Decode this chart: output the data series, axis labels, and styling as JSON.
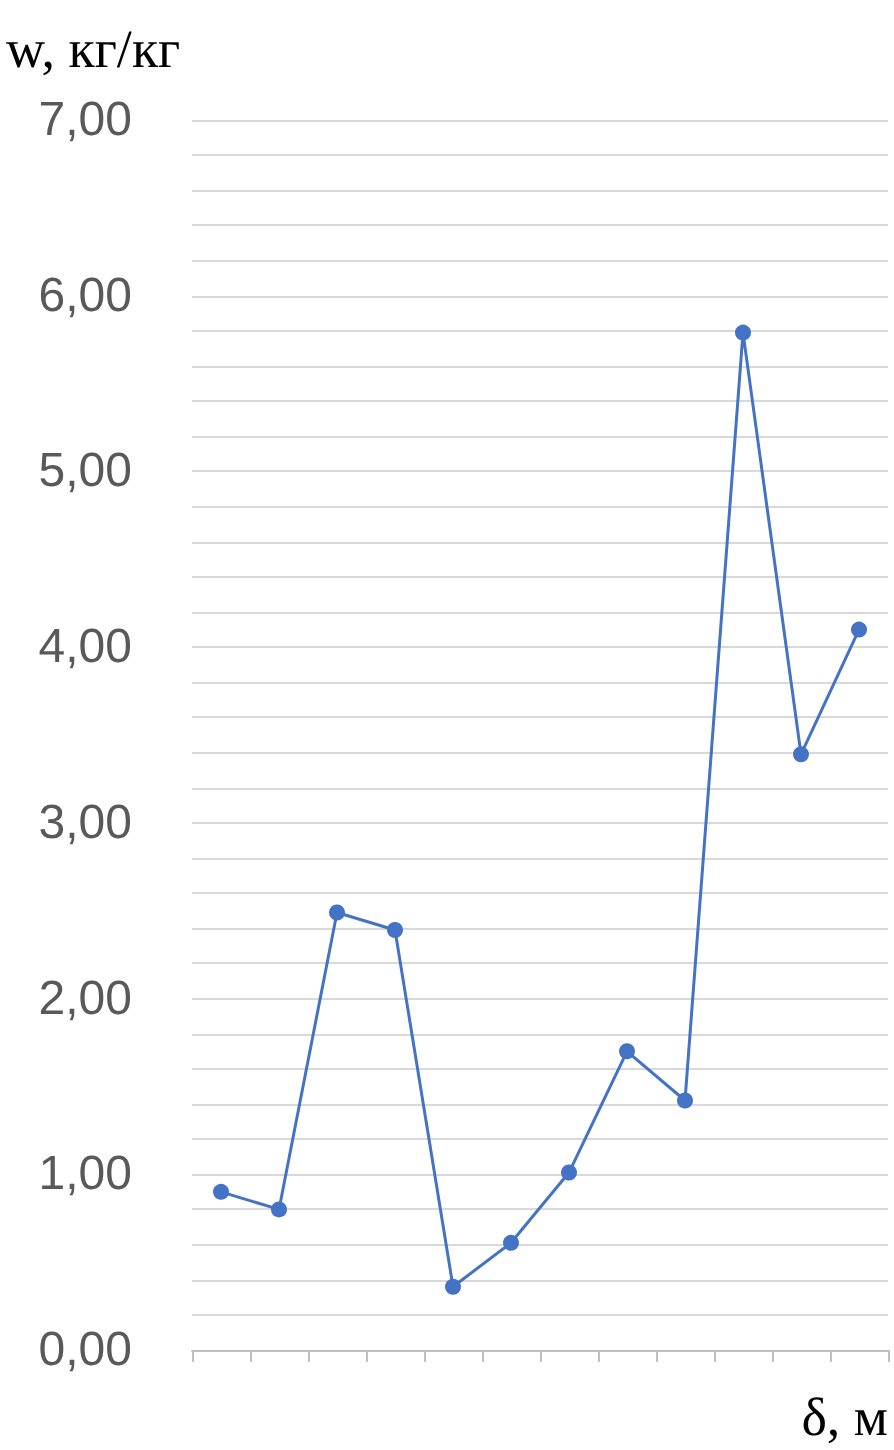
{
  "chart_data": {
    "type": "line",
    "xlabel": "δ, м",
    "ylabel": "w, кг/кг",
    "categories": [
      null,
      null,
      null,
      null,
      null,
      null,
      null,
      null,
      null,
      null,
      null,
      null
    ],
    "series": [
      {
        "color": "#4472c4",
        "values": [
          0.9,
          0.8,
          2.49,
          2.39,
          0.36,
          0.61,
          1.01,
          1.7,
          1.42,
          5.79,
          3.39,
          4.1
        ]
      }
    ],
    "ylim": [
      0,
      7
    ],
    "yticks": [
      {
        "value": 0,
        "label": "0,00"
      },
      {
        "value": 0.2,
        "label": null
      },
      {
        "value": 0.4,
        "label": null
      },
      {
        "value": 0.6,
        "label": null
      },
      {
        "value": 0.8,
        "label": null
      },
      {
        "value": 1,
        "label": "1,00"
      },
      {
        "value": 1.2,
        "label": null
      },
      {
        "value": 1.4,
        "label": null
      },
      {
        "value": 1.6,
        "label": null
      },
      {
        "value": 1.8,
        "label": null
      },
      {
        "value": 2,
        "label": "2,00"
      },
      {
        "value": 2.2,
        "label": null
      },
      {
        "value": 2.4,
        "label": null
      },
      {
        "value": 2.6,
        "label": null
      },
      {
        "value": 2.8,
        "label": null
      },
      {
        "value": 3,
        "label": "3,00"
      },
      {
        "value": 3.2,
        "label": null
      },
      {
        "value": 3.4,
        "label": null
      },
      {
        "value": 3.6,
        "label": null
      },
      {
        "value": 3.8,
        "label": null
      },
      {
        "value": 4,
        "label": "4,00"
      },
      {
        "value": 4.2,
        "label": null
      },
      {
        "value": 4.4,
        "label": null
      },
      {
        "value": 4.6,
        "label": null
      },
      {
        "value": 4.8,
        "label": null
      },
      {
        "value": 5,
        "label": "5,00"
      },
      {
        "value": 5.2,
        "label": null
      },
      {
        "value": 5.4,
        "label": null
      },
      {
        "value": 5.6,
        "label": null
      },
      {
        "value": 5.8,
        "label": null
      },
      {
        "value": 6,
        "label": "6,00"
      },
      {
        "value": 6.2,
        "label": null
      },
      {
        "value": 6.4,
        "label": null
      },
      {
        "value": 6.6,
        "label": null
      },
      {
        "value": 6.8,
        "label": null
      },
      {
        "value": 7,
        "label": "7,00"
      }
    ],
    "grid": "y",
    "marker": "circle",
    "line_style": "solid"
  }
}
